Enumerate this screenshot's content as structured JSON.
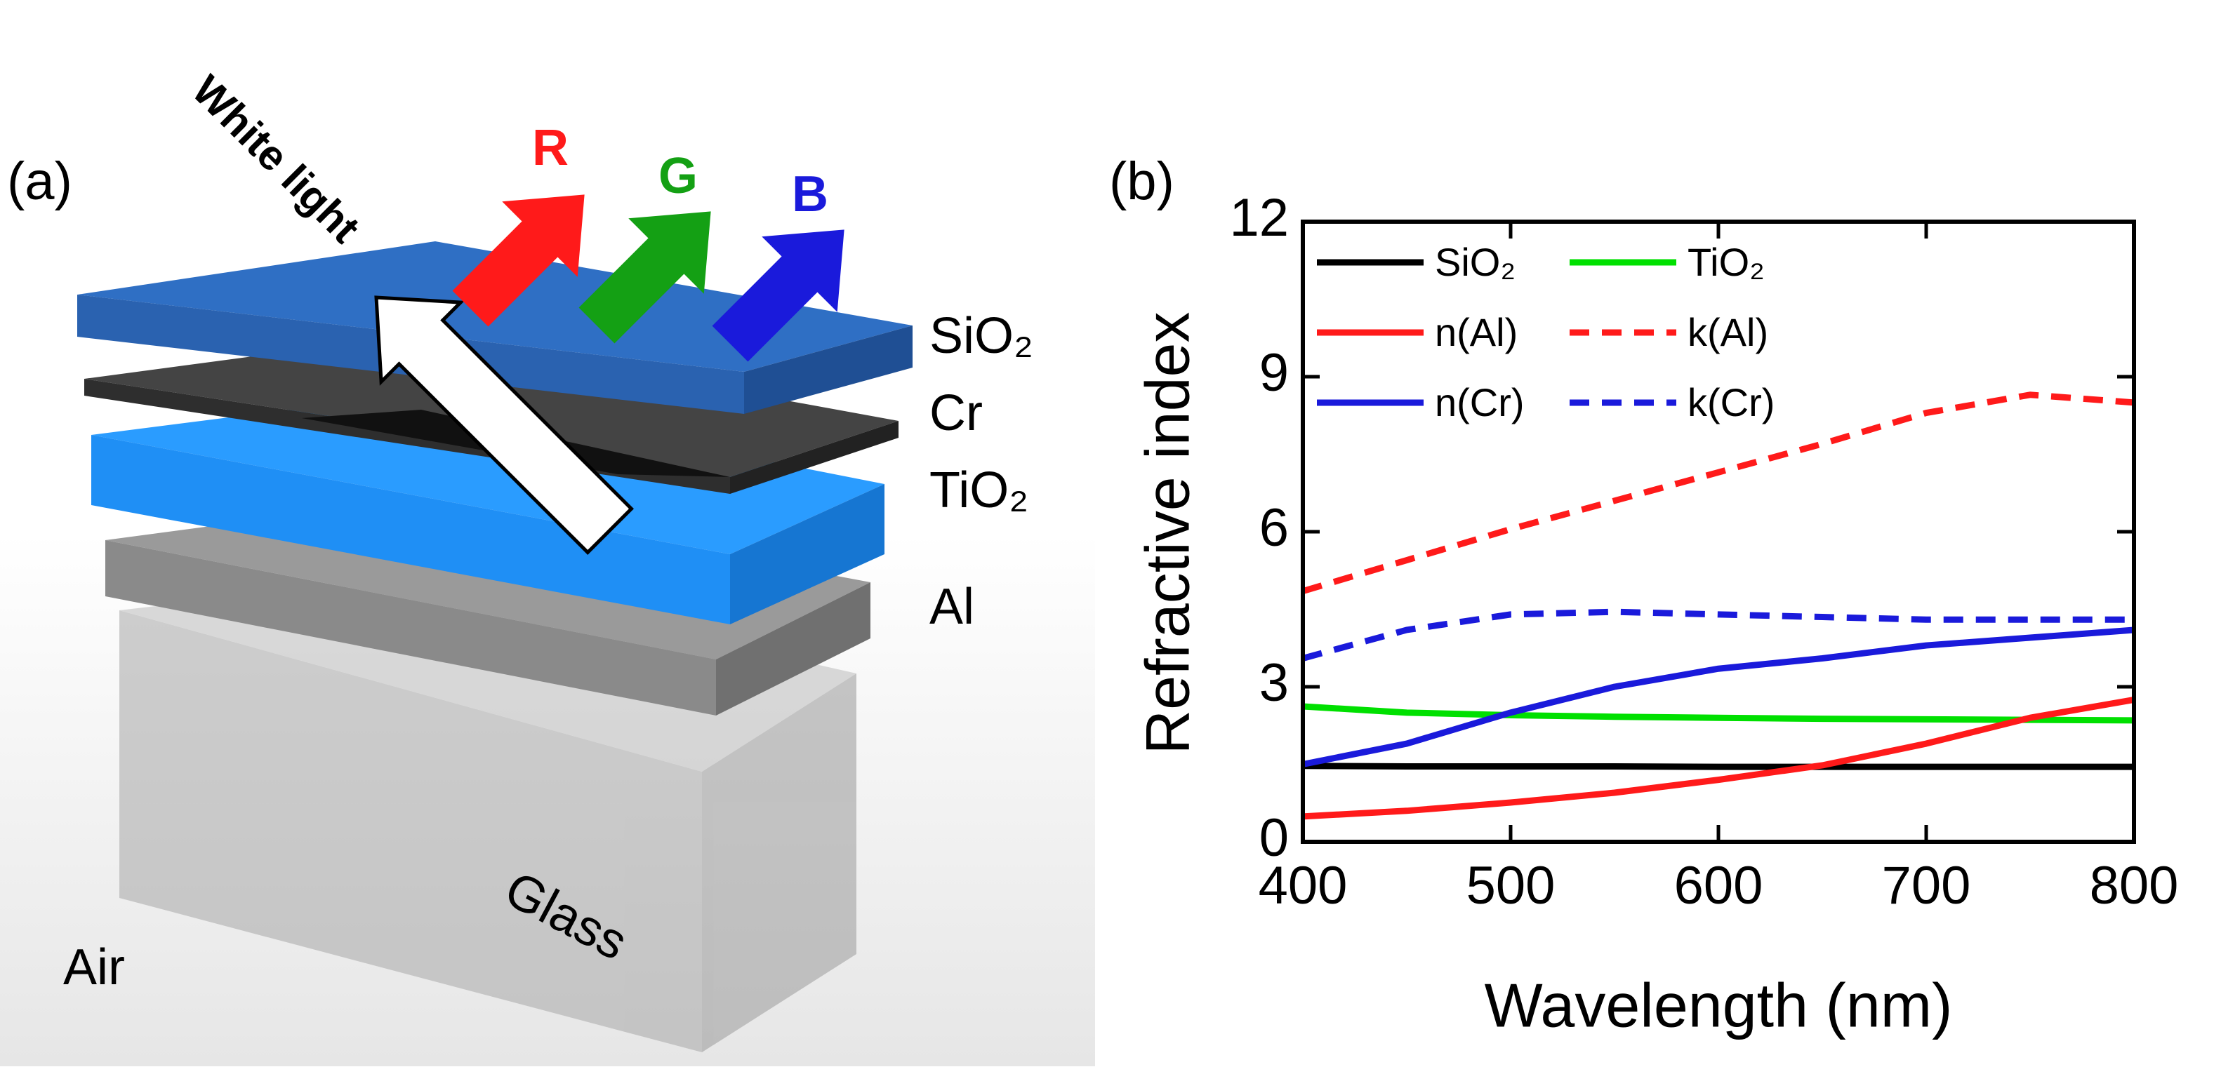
{
  "panel_a": {
    "label": "(a)",
    "incident": "White light",
    "reflected": [
      "R",
      "G",
      "B"
    ],
    "layers": [
      "SiO₂",
      "Cr",
      "TiO₂",
      "Al"
    ],
    "substrate": "Glass",
    "ambient": "Air"
  },
  "chart_data": {
    "type": "line",
    "label": "(b)",
    "x_label": "Wavelength (nm)",
    "y_label": "Refractive index",
    "x": [
      400,
      450,
      500,
      550,
      600,
      650,
      700,
      750,
      800
    ],
    "xlim": [
      400,
      800
    ],
    "xticks": [
      400,
      500,
      600,
      700,
      800
    ],
    "ylim": [
      0,
      12
    ],
    "yticks": [
      0,
      3,
      6,
      9,
      12
    ],
    "grid": false,
    "series": [
      {
        "name": "SiO₂",
        "color": "#000000",
        "linestyle": "solid",
        "values": [
          1.47,
          1.46,
          1.46,
          1.46,
          1.45,
          1.45,
          1.45,
          1.45,
          1.45
        ]
      },
      {
        "name": "TiO₂",
        "color": "#00e000",
        "linestyle": "solid",
        "values": [
          2.62,
          2.5,
          2.45,
          2.42,
          2.4,
          2.38,
          2.37,
          2.36,
          2.35
        ]
      },
      {
        "name": "n(Al)",
        "color": "#ff1a1a",
        "linestyle": "solid",
        "values": [
          0.49,
          0.6,
          0.76,
          0.95,
          1.2,
          1.48,
          1.9,
          2.4,
          2.75
        ]
      },
      {
        "name": "k(Al)",
        "color": "#ff1a1a",
        "linestyle": "dashed",
        "values": [
          4.85,
          5.45,
          6.05,
          6.6,
          7.15,
          7.7,
          8.3,
          8.65,
          8.5
        ]
      },
      {
        "name": "n(Cr)",
        "color": "#1a1adb",
        "linestyle": "solid",
        "values": [
          1.5,
          1.9,
          2.5,
          3.0,
          3.35,
          3.55,
          3.8,
          3.95,
          4.1
        ]
      },
      {
        "name": "k(Cr)",
        "color": "#1a1adb",
        "linestyle": "dashed",
        "values": [
          3.55,
          4.1,
          4.4,
          4.45,
          4.4,
          4.35,
          4.3,
          4.3,
          4.3
        ]
      }
    ]
  }
}
